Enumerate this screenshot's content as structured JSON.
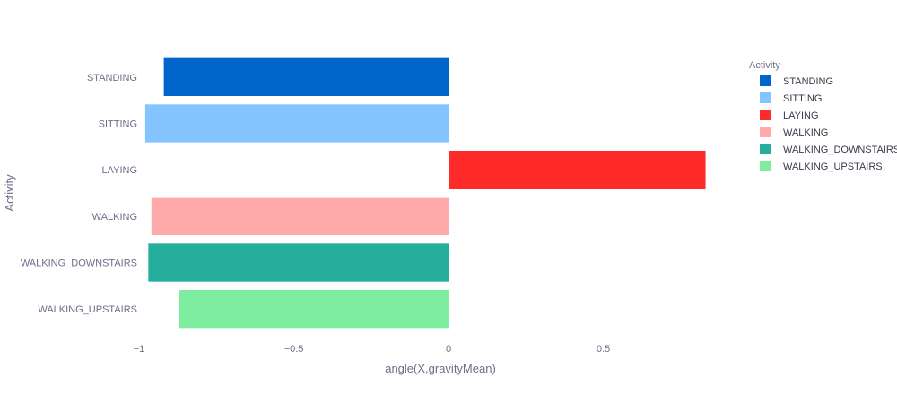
{
  "chart_data": {
    "type": "bar",
    "orientation": "horizontal",
    "xlabel": "angle(X,gravityMean)",
    "ylabel": "Activity",
    "xlim": [
      -1.0,
      0.84
    ],
    "xticks": [
      -1,
      -0.5,
      0,
      0.5
    ],
    "xtick_labels": [
      "−1",
      "−0.5",
      "0",
      "0.5"
    ],
    "grid": false,
    "legend": {
      "title": "Activity",
      "placement": "top-right"
    },
    "categories": [
      "STANDING",
      "SITTING",
      "LAYING",
      "WALKING",
      "WALKING_DOWNSTAIRS",
      "WALKING_UPSTAIRS"
    ],
    "series": [
      {
        "name": "STANDING",
        "category": "STANDING",
        "value": -0.92,
        "color": "#0066CC"
      },
      {
        "name": "SITTING",
        "category": "SITTING",
        "value": -0.98,
        "color": "#85C5FF"
      },
      {
        "name": "LAYING",
        "category": "LAYING",
        "value": 0.83,
        "color": "#FF2A2A"
      },
      {
        "name": "WALKING",
        "category": "WALKING",
        "value": -0.96,
        "color": "#FFAAAA"
      },
      {
        "name": "WALKING_DOWNSTAIRS",
        "category": "WALKING_DOWNSTAIRS",
        "value": -0.97,
        "color": "#26AE9D"
      },
      {
        "name": "WALKING_UPSTAIRS",
        "category": "WALKING_UPSTAIRS",
        "value": -0.87,
        "color": "#7EEDA0"
      }
    ]
  }
}
